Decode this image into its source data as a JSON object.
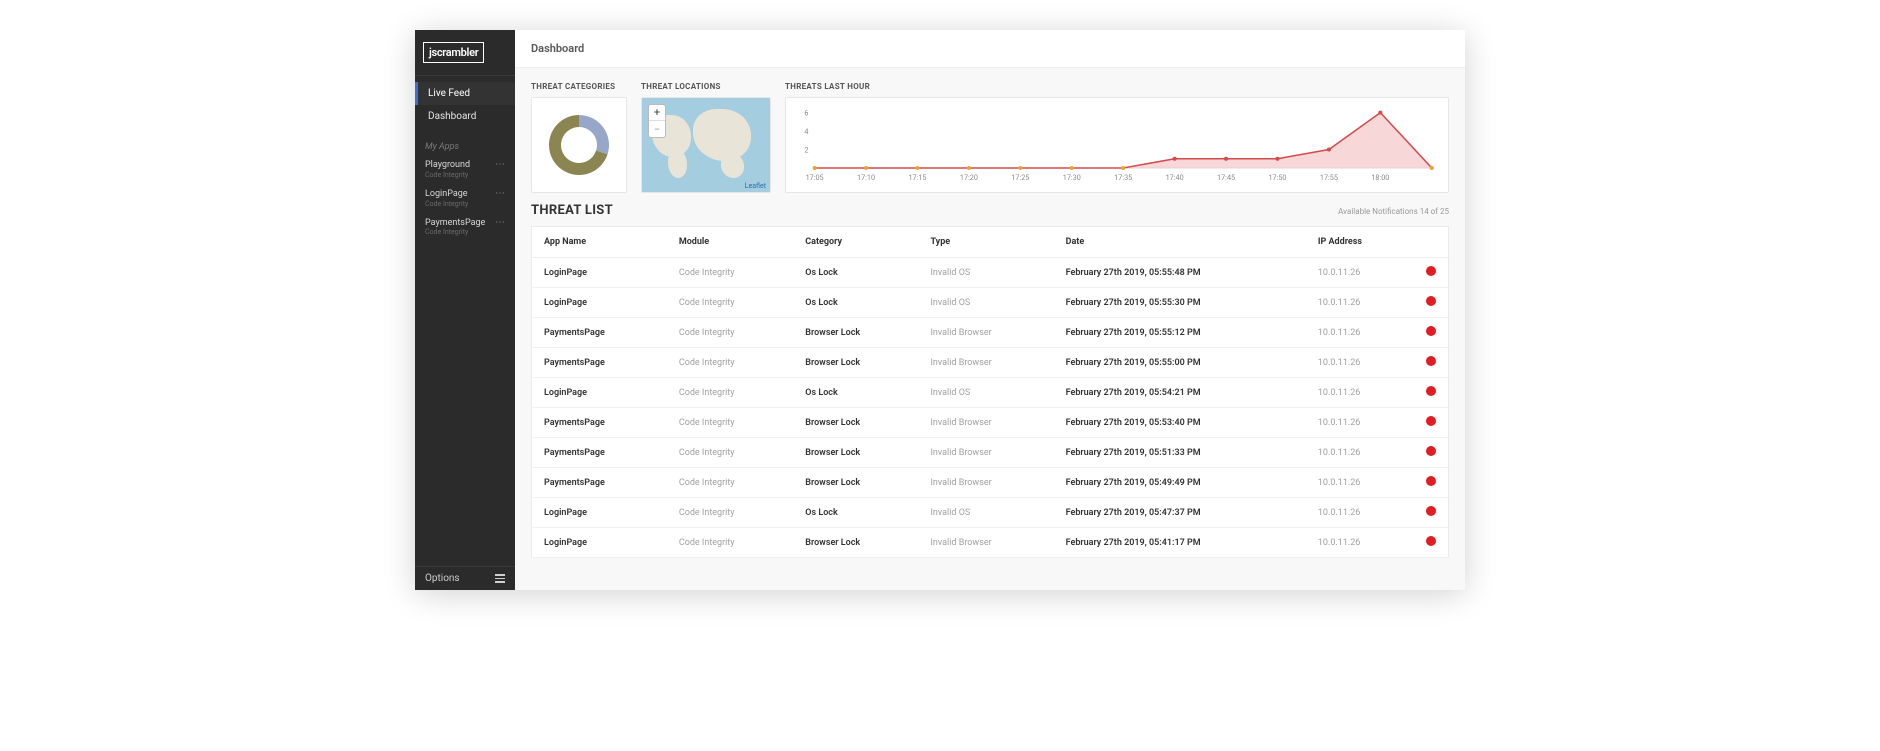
{
  "brand": "jscrambler",
  "page_title": "Dashboard",
  "sidebar": {
    "nav": [
      {
        "label": "Live Feed",
        "active": true
      },
      {
        "label": "Dashboard",
        "active": false
      }
    ],
    "apps_header": "My Apps",
    "apps": [
      {
        "name": "Playground",
        "sub": "Code Integrity"
      },
      {
        "name": "LoginPage",
        "sub": "Code Integrity"
      },
      {
        "name": "PaymentsPage",
        "sub": "Code Integrity"
      }
    ],
    "footer_label": "Options"
  },
  "panels": {
    "categories": {
      "title": "THREAT CATEGORIES",
      "donut": {
        "segments": [
          {
            "color": "#97a6c9",
            "fraction": 0.3
          },
          {
            "color": "#8b8552",
            "fraction": 0.7
          }
        ],
        "inner_radius": 18,
        "outer_radius": 30
      }
    },
    "locations": {
      "title": "THREAT LOCATIONS",
      "zoom_in": "+",
      "zoom_out": "−",
      "attribution": "Leaflet",
      "water_color": "#a5cde0",
      "land_color": "#e8e4d8"
    },
    "chart": {
      "title": "THREATS LAST HOUR",
      "type": "area",
      "y_ticks": [
        2,
        4,
        6
      ],
      "ylim": [
        0,
        6.5
      ],
      "x_labels": [
        "17:05",
        "17:10",
        "17:15",
        "17:20",
        "17:25",
        "17:30",
        "17:35",
        "17:40",
        "17:45",
        "17:50",
        "17:55",
        "18:00"
      ],
      "values": [
        0,
        0,
        0,
        0,
        0,
        0,
        0,
        1,
        1,
        1,
        2,
        6,
        0
      ],
      "line_color": "#d54a4a",
      "fill_color": "#f4c9c9",
      "marker_color": "#e9a33b",
      "axis_color": "#d8d8d8",
      "label_color": "#888888"
    }
  },
  "threat_list": {
    "title": "THREAT LIST",
    "meta_prefix": "Available Notifications ",
    "meta_count": "14 of 25",
    "columns": [
      "App Name",
      "Module",
      "Category",
      "Type",
      "Date",
      "IP Address",
      ""
    ],
    "status_color": "#e31b23",
    "rows": [
      {
        "app": "LoginPage",
        "module": "Code Integrity",
        "category": "Os Lock",
        "type": "Invalid OS",
        "date": "February 27th 2019, 05:55:48 PM",
        "ip": "10.0.11.26"
      },
      {
        "app": "LoginPage",
        "module": "Code Integrity",
        "category": "Os Lock",
        "type": "Invalid OS",
        "date": "February 27th 2019, 05:55:30 PM",
        "ip": "10.0.11.26"
      },
      {
        "app": "PaymentsPage",
        "module": "Code Integrity",
        "category": "Browser Lock",
        "type": "Invalid Browser",
        "date": "February 27th 2019, 05:55:12 PM",
        "ip": "10.0.11.26"
      },
      {
        "app": "PaymentsPage",
        "module": "Code Integrity",
        "category": "Browser Lock",
        "type": "Invalid Browser",
        "date": "February 27th 2019, 05:55:00 PM",
        "ip": "10.0.11.26"
      },
      {
        "app": "LoginPage",
        "module": "Code Integrity",
        "category": "Os Lock",
        "type": "Invalid OS",
        "date": "February 27th 2019, 05:54:21 PM",
        "ip": "10.0.11.26"
      },
      {
        "app": "PaymentsPage",
        "module": "Code Integrity",
        "category": "Browser Lock",
        "type": "Invalid Browser",
        "date": "February 27th 2019, 05:53:40 PM",
        "ip": "10.0.11.26"
      },
      {
        "app": "PaymentsPage",
        "module": "Code Integrity",
        "category": "Browser Lock",
        "type": "Invalid Browser",
        "date": "February 27th 2019, 05:51:33 PM",
        "ip": "10.0.11.26"
      },
      {
        "app": "PaymentsPage",
        "module": "Code Integrity",
        "category": "Browser Lock",
        "type": "Invalid Browser",
        "date": "February 27th 2019, 05:49:49 PM",
        "ip": "10.0.11.26"
      },
      {
        "app": "LoginPage",
        "module": "Code Integrity",
        "category": "Os Lock",
        "type": "Invalid OS",
        "date": "February 27th 2019, 05:47:37 PM",
        "ip": "10.0.11.26"
      },
      {
        "app": "LoginPage",
        "module": "Code Integrity",
        "category": "Browser Lock",
        "type": "Invalid Browser",
        "date": "February 27th 2019, 05:41:17 PM",
        "ip": "10.0.11.26"
      }
    ]
  }
}
